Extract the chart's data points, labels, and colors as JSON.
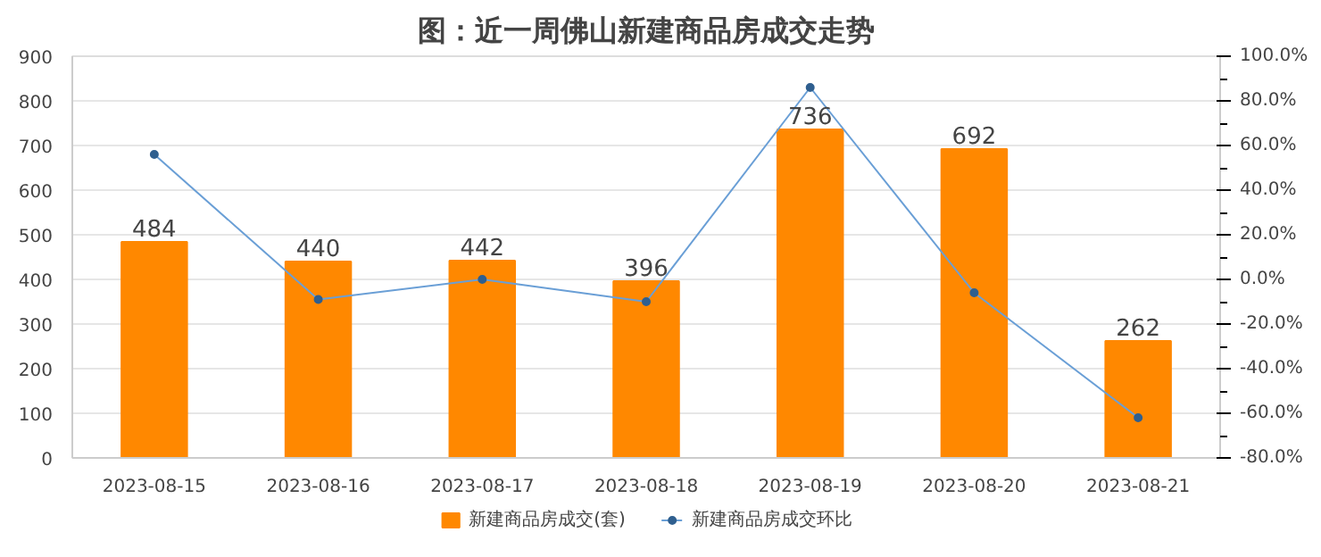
{
  "chart_data": {
    "type": "bar",
    "title": "图：近一周佛山新建商品房成交走势",
    "categories": [
      "2023-08-15",
      "2023-08-16",
      "2023-08-17",
      "2023-08-18",
      "2023-08-19",
      "2023-08-20",
      "2023-08-21"
    ],
    "series": [
      {
        "name": "新建商品房成交(套)",
        "color": "#ff8800",
        "values": [
          484,
          440,
          442,
          396,
          736,
          692,
          262
        ],
        "value_labels": [
          "484",
          "440",
          "442",
          "396",
          "736",
          "692",
          "262"
        ]
      },
      {
        "name": "新建商品房成交环比",
        "type": "line",
        "axis": "y2",
        "color": "#6a9fd6",
        "marker": "circle",
        "values": [
          56,
          -9,
          0,
          -10,
          86,
          -6,
          -62
        ]
      }
    ],
    "ylim": [
      0,
      900
    ],
    "yticks": [
      0,
      100,
      200,
      300,
      400,
      500,
      600,
      700,
      800,
      900
    ],
    "y2lim": [
      -80,
      100
    ],
    "y2ticks": [
      {
        "value": -80,
        "label": "-80.0%"
      },
      {
        "value": -60,
        "label": "-60.0%"
      },
      {
        "value": -40,
        "label": "-40.0%"
      },
      {
        "value": -20,
        "label": "-20.0%"
      },
      {
        "value": 0,
        "label": "0.0%"
      },
      {
        "value": 20,
        "label": "20.0%"
      },
      {
        "value": 40,
        "label": "40.0%"
      },
      {
        "value": 60,
        "label": "60.0%"
      },
      {
        "value": 80,
        "label": "80.0%"
      },
      {
        "value": 100,
        "label": "100.0%"
      }
    ],
    "grid": "y",
    "legend": "bottom"
  }
}
